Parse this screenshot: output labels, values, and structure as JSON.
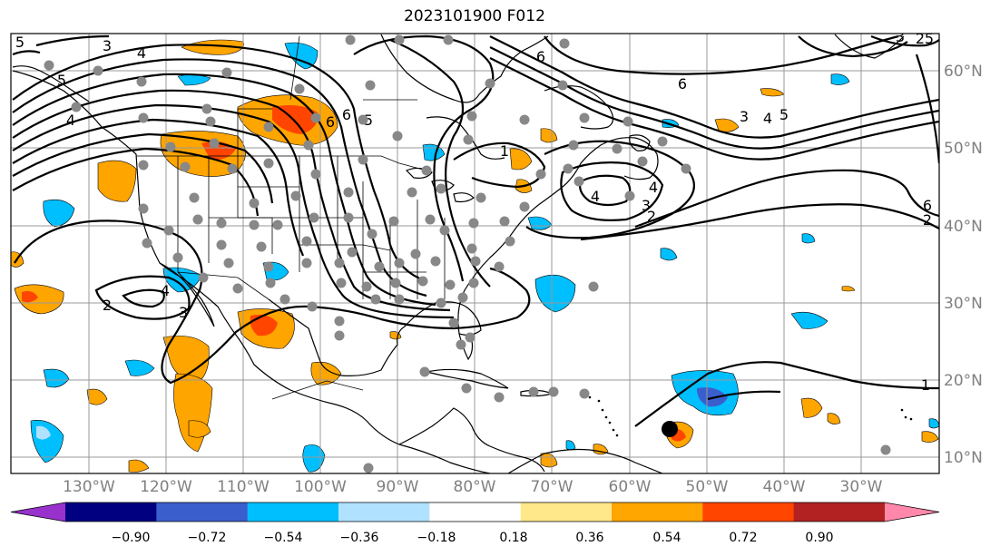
{
  "title": "2023101900 F012",
  "lat_labels": [
    "60°N",
    "50°N",
    "40°N",
    "30°N",
    "20°N",
    "10°N"
  ],
  "lon_labels": [
    "130°W",
    "120°W",
    "110°W",
    "100°W",
    "90°W",
    "80°W",
    "70°W",
    "60°W",
    "50°W",
    "40°W",
    "30°W"
  ],
  "colorbar": {
    "ticks": [
      "−0.90",
      "−0.72",
      "−0.54",
      "−0.36",
      "−0.18",
      "0.18",
      "0.36",
      "0.54",
      "0.72",
      "0.90"
    ],
    "colors": [
      "#9932cc",
      "#000080",
      "#3a5fcd",
      "#00bfff",
      "#b0e2ff",
      "#ffffff",
      "#ffe88a",
      "#ffa500",
      "#ff4500",
      "#b22222",
      "#ff88aa"
    ]
  },
  "contour_labels": [
    "3",
    "4",
    "5",
    "2",
    "4",
    "5",
    "6",
    "6",
    "6",
    "4",
    "5",
    "3",
    "4",
    "5",
    "1",
    "6",
    "4",
    "3",
    "2",
    "3",
    "4",
    "2",
    "3",
    "1",
    "6",
    "5",
    "2"
  ],
  "colors": {
    "grid": "#999999",
    "contour": "#000000",
    "coast": "#000000"
  },
  "storm_marker": "black-dot"
}
